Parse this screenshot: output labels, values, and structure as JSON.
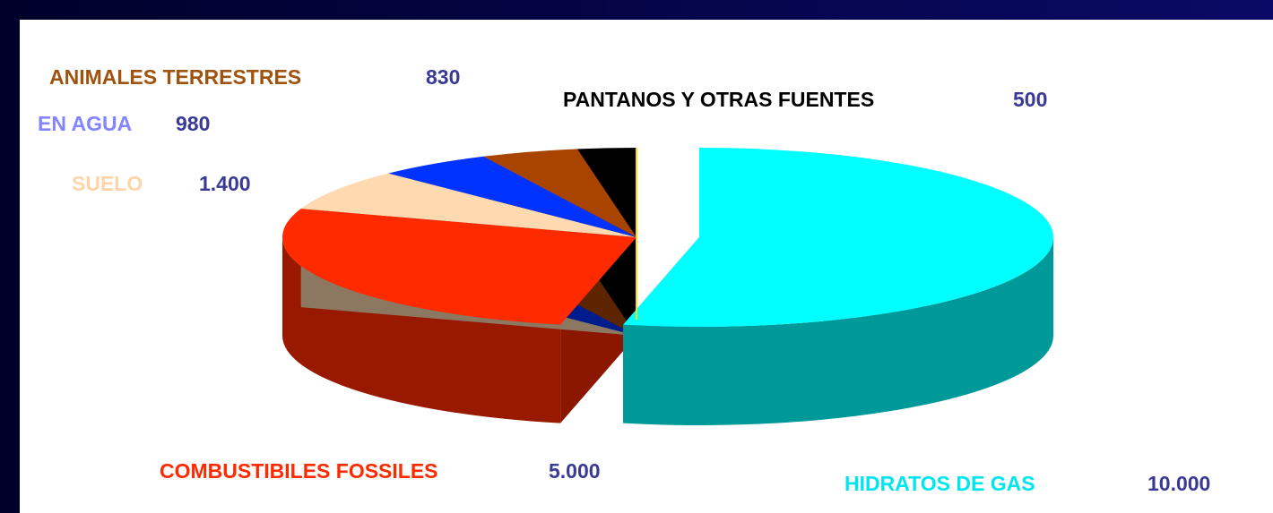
{
  "chart_data": {
    "type": "pie",
    "categories": [
      "HIDRATOS DE GAS",
      "COMBUSTIBILES FOSSILES",
      "SUELO",
      "EN AGUA",
      "ANIMALES TERRESTRES",
      "PANTANOS Y OTRAS FUENTES"
    ],
    "values": [
      10000,
      5000,
      1400,
      980,
      830,
      500
    ],
    "value_labels": [
      "10.000",
      "5.000",
      "1.400",
      "980",
      "830",
      "500"
    ],
    "colors": [
      "#00ffff",
      "#ff2a00",
      "#ffdab0",
      "#0033ff",
      "#a84400",
      "#000000"
    ],
    "exploded": [
      0
    ]
  }
}
